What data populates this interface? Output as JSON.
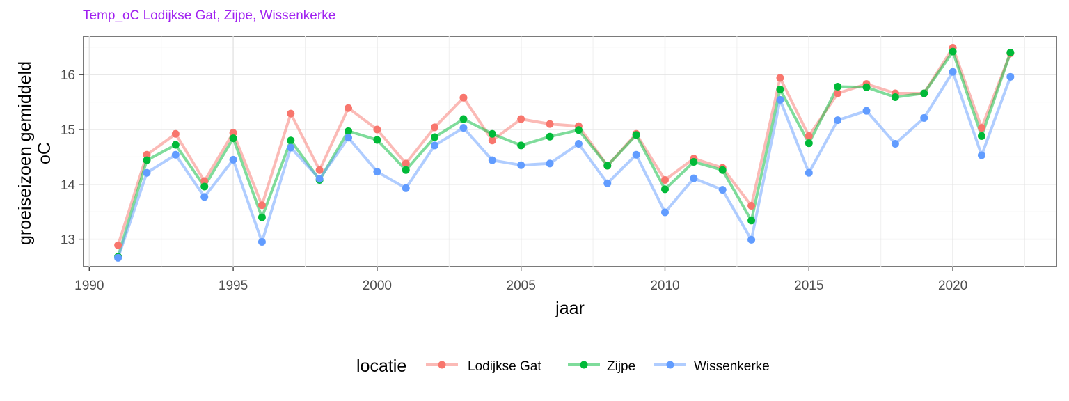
{
  "chart_data": {
    "type": "line",
    "title": "Temp_oC Lodijkse Gat, Zijpe, Wissenkerke",
    "xlabel": "jaar",
    "ylabel_line1": "groeiseizoen gemiddeld",
    "ylabel_line2": "oC",
    "xlim": [
      1989.8,
      2023.6
    ],
    "ylim": [
      12.5,
      16.7
    ],
    "x_ticks": [
      1990,
      1995,
      2000,
      2005,
      2010,
      2015,
      2020
    ],
    "y_ticks": [
      13,
      14,
      15,
      16
    ],
    "grid": true,
    "legend_position": "bottom",
    "legend_title": "locatie",
    "x": [
      1991,
      1992,
      1993,
      1994,
      1995,
      1996,
      1997,
      1998,
      1999,
      2000,
      2001,
      2002,
      2003,
      2004,
      2005,
      2006,
      2007,
      2008,
      2009,
      2010,
      2011,
      2012,
      2013,
      2014,
      2015,
      2016,
      2017,
      2018,
      2019,
      2020,
      2021,
      2022
    ],
    "series": [
      {
        "name": "Lodijkse Gat",
        "color": "#F8766D",
        "values": [
          12.89,
          14.54,
          14.92,
          14.06,
          14.94,
          13.62,
          15.29,
          14.26,
          15.39,
          15.0,
          14.38,
          15.04,
          15.58,
          14.8,
          15.19,
          15.1,
          15.06,
          14.34,
          14.92,
          14.08,
          14.47,
          14.3,
          13.61,
          15.94,
          14.88,
          15.66,
          15.83,
          15.66,
          15.66,
          16.49,
          15.03,
          16.39
        ]
      },
      {
        "name": "Zijpe",
        "color": "#00BA38",
        "values": [
          12.68,
          14.44,
          14.72,
          13.96,
          14.84,
          13.4,
          14.8,
          14.08,
          14.97,
          14.81,
          14.26,
          14.86,
          15.19,
          14.92,
          14.71,
          14.87,
          14.99,
          14.34,
          14.9,
          13.91,
          14.41,
          14.26,
          13.34,
          15.73,
          14.75,
          15.78,
          15.77,
          15.59,
          15.66,
          16.42,
          14.88,
          16.4
        ]
      },
      {
        "name": "Wissenkerke",
        "color": "#619CFF",
        "values": [
          12.66,
          14.21,
          14.54,
          13.77,
          14.45,
          12.95,
          14.67,
          14.1,
          14.85,
          14.23,
          13.93,
          14.71,
          15.03,
          14.44,
          14.35,
          14.38,
          14.74,
          14.02,
          14.54,
          13.49,
          14.11,
          13.9,
          12.99,
          15.54,
          14.21,
          15.17,
          15.34,
          14.74,
          15.21,
          16.05,
          14.53,
          15.96
        ]
      }
    ]
  }
}
